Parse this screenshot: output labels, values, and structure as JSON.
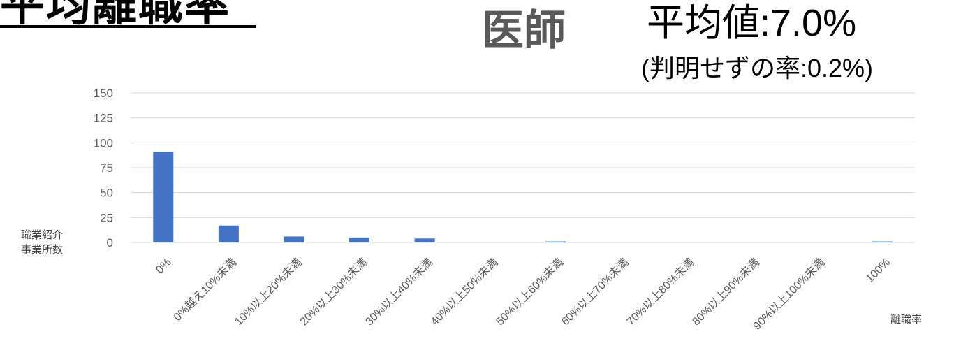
{
  "header": {
    "slide_title": "平均離職率",
    "profession": "医師",
    "average_label": "平均値:7.0%",
    "unknown_rate_label": "(判明せずの率:0.2%)"
  },
  "chart_data": {
    "type": "bar",
    "title": "",
    "ylabel_lines": [
      "職業紹介",
      "事業所数"
    ],
    "xlabel": "離職率",
    "ylim": [
      0,
      150
    ],
    "yticks": [
      0,
      25,
      50,
      75,
      100,
      125,
      150
    ],
    "grid": true,
    "categories": [
      "0%",
      "0%越え10%未満",
      "10%以上20%未満",
      "20%以上30%未満",
      "30%以上40%未満",
      "40%以上50%未満",
      "50%以上60%未満",
      "60%以上70%未満",
      "70%以上80%未満",
      "80%以上90%未満",
      "90%以上100%未満",
      "100%"
    ],
    "values": [
      91,
      17,
      6,
      5,
      4,
      0,
      1,
      0,
      0,
      0,
      0,
      1
    ],
    "bar_color": "#4472C4",
    "grid_color": "#D9D9D9"
  }
}
